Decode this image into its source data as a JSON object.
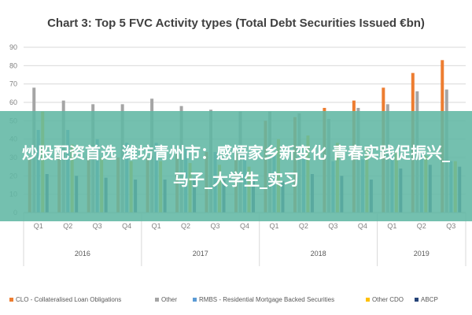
{
  "chart_data": {
    "type": "bar",
    "title": "Chart 3: Top 5 FVC Activity types (Total Debt Securities Issued €bn)",
    "xlabel": "",
    "ylabel": "",
    "ylim": [
      0,
      90
    ],
    "yticks": [
      0,
      10,
      20,
      30,
      40,
      50,
      60,
      70,
      80,
      90
    ],
    "grid": true,
    "legend_position": "bottom",
    "categories": [
      "Q1",
      "Q2",
      "Q3",
      "Q4",
      "Q1",
      "Q2",
      "Q3",
      "Q4",
      "Q1",
      "Q2",
      "Q3",
      "Q4",
      "Q1",
      "Q2",
      "Q3"
    ],
    "year_groups": [
      {
        "label": "2016",
        "count": 4
      },
      {
        "label": "2017",
        "count": 4
      },
      {
        "label": "2018",
        "count": 4
      },
      {
        "label": "2019",
        "count": 3
      }
    ],
    "series": [
      {
        "name": "CLO - Collateralised Loan Obligations",
        "color": "#ED7D31",
        "values": [
          30,
          32,
          31,
          30,
          30,
          32,
          33,
          34,
          50,
          52,
          57,
          61,
          68,
          76,
          83
        ]
      },
      {
        "name": "Other",
        "color": "#A5A5A5",
        "values": [
          68,
          61,
          59,
          59,
          62,
          58,
          56,
          55,
          55,
          54,
          51,
          57,
          59,
          66,
          67
        ]
      },
      {
        "name": "RMBS - Residential Mortgage Backed Securities",
        "color": "#5B9BD5",
        "values": [
          45,
          45,
          40,
          38,
          38,
          35,
          33,
          32,
          32,
          31,
          28,
          29,
          32,
          33,
          28
        ]
      },
      {
        "name": "Other CDO",
        "color": "#FFC000",
        "values": [
          55,
          37,
          30,
          28,
          28,
          27,
          26,
          25,
          40,
          42,
          38,
          36,
          33,
          31,
          28
        ]
      },
      {
        "name": "ABCP",
        "color": "#264478",
        "values": [
          21,
          20,
          19,
          18,
          18,
          19,
          18,
          18,
          17,
          21,
          20,
          18,
          24,
          26,
          25
        ]
      }
    ]
  },
  "overlay": {
    "text": "炒股配资首选 潍坊青州市：感悟家乡新变化 青春实践促振兴_马子_大学生_实习"
  }
}
